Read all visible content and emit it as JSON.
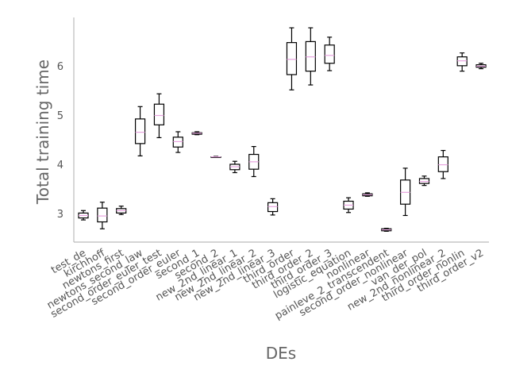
{
  "chart_data": {
    "type": "box",
    "title": "",
    "xlabel": "DEs",
    "ylabel": "Total training time",
    "ylim": [
      2.42,
      6.98
    ],
    "yticks": [
      3,
      4,
      5,
      6
    ],
    "grid": false,
    "colors": {
      "box": "#000000",
      "median": "#e8a5e0",
      "axis": "#bbbbbb",
      "text": "#555555"
    },
    "categories": [
      "test_de",
      "kirchhoff",
      "newtons_first",
      "newtons_second_law",
      "second_order_euler_test",
      "second_order_euler",
      "second_1",
      "second_2",
      "new_2nd_linear_1",
      "new_2nd_linear_2",
      "new_2nd_linear_3",
      "third_order",
      "third_order_2",
      "third_order_3",
      "logistic_equation",
      "nonlinear",
      "painleve_2_transcendent",
      "second_order_nonlinear",
      "van_der_pol",
      "new_2nd_nonlinear_2",
      "third_order_nonlin",
      "third_order_v2"
    ],
    "boxes": [
      {
        "whislo": 2.87,
        "q1": 2.91,
        "med": 2.96,
        "q3": 3.01,
        "whishi": 3.06
      },
      {
        "whislo": 2.69,
        "q1": 2.83,
        "med": 2.95,
        "q3": 3.11,
        "whishi": 3.23
      },
      {
        "whislo": 2.98,
        "q1": 3.01,
        "med": 3.06,
        "q3": 3.1,
        "whishi": 3.15
      },
      {
        "whislo": 4.17,
        "q1": 4.42,
        "med": 4.65,
        "q3": 4.92,
        "whishi": 5.17
      },
      {
        "whislo": 4.54,
        "q1": 4.8,
        "med": 4.99,
        "q3": 5.22,
        "whishi": 5.43
      },
      {
        "whislo": 4.24,
        "q1": 4.35,
        "med": 4.46,
        "q3": 4.55,
        "whishi": 4.66
      },
      {
        "whislo": 4.6,
        "q1": 4.61,
        "med": 4.63,
        "q3": 4.64,
        "whishi": 4.66
      },
      {
        "whislo": 4.14,
        "q1": 4.14,
        "med": 4.15,
        "q3": 4.15,
        "whishi": 4.16
      },
      {
        "whislo": 3.83,
        "q1": 3.89,
        "med": 3.95,
        "q3": 4.0,
        "whishi": 4.06
      },
      {
        "whislo": 3.75,
        "q1": 3.9,
        "med": 4.05,
        "q3": 4.2,
        "whishi": 4.36
      },
      {
        "whislo": 2.97,
        "q1": 3.04,
        "med": 3.14,
        "q3": 3.22,
        "whishi": 3.3
      },
      {
        "whislo": 5.51,
        "q1": 5.82,
        "med": 6.13,
        "q3": 6.47,
        "whishi": 6.77
      },
      {
        "whislo": 5.61,
        "q1": 5.89,
        "med": 6.18,
        "q3": 6.49,
        "whishi": 6.77
      },
      {
        "whislo": 5.9,
        "q1": 6.05,
        "med": 6.21,
        "q3": 6.42,
        "whishi": 6.58
      },
      {
        "whislo": 3.02,
        "q1": 3.09,
        "med": 3.17,
        "q3": 3.25,
        "whishi": 3.32
      },
      {
        "whislo": 3.35,
        "q1": 3.36,
        "med": 3.38,
        "q3": 3.4,
        "whishi": 3.42
      },
      {
        "whislo": 2.64,
        "q1": 2.65,
        "med": 2.67,
        "q3": 2.69,
        "whishi": 2.7
      },
      {
        "whislo": 2.96,
        "q1": 3.19,
        "med": 3.43,
        "q3": 3.68,
        "whishi": 3.92
      },
      {
        "whislo": 3.57,
        "q1": 3.61,
        "med": 3.65,
        "q3": 3.71,
        "whishi": 3.76
      },
      {
        "whislo": 3.71,
        "q1": 3.85,
        "med": 3.99,
        "q3": 4.15,
        "whishi": 4.28
      },
      {
        "whislo": 5.89,
        "q1": 6.0,
        "med": 6.1,
        "q3": 6.18,
        "whishi": 6.26
      },
      {
        "whislo": 5.94,
        "q1": 5.97,
        "med": 5.99,
        "q3": 6.02,
        "whishi": 6.05
      }
    ]
  }
}
